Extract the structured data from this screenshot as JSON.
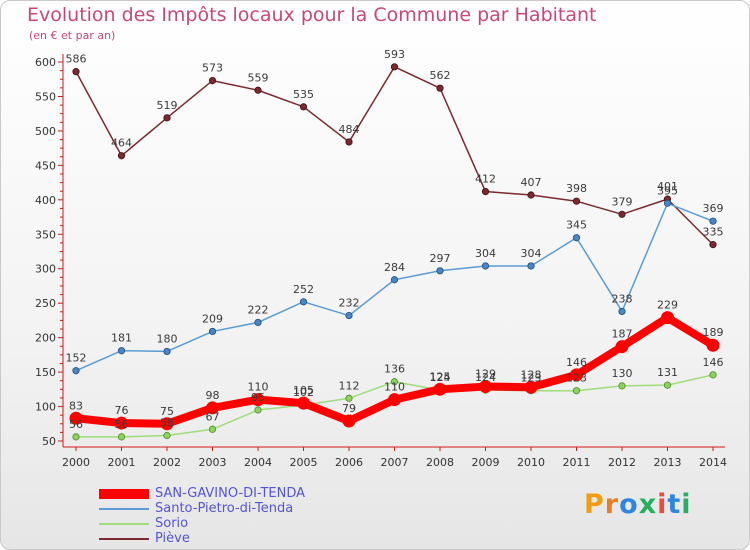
{
  "title": "Evolution des Impôts locaux pour la Commune par Habitant",
  "subtitle": "(en € et par an)",
  "brand": {
    "letters": [
      "P",
      "r",
      "o",
      "x",
      "i",
      "t",
      "i"
    ],
    "colors": [
      "#f39c12",
      "#e67e22",
      "#2e86de",
      "#27ae60",
      "#e74c3c",
      "#2e86de",
      "#27ae60"
    ]
  },
  "chart_data": {
    "type": "line",
    "title": "Evolution des Impôts locaux pour la Commune par Habitant",
    "subtitle": "(en € et par an)",
    "x": [
      "2000",
      "2001",
      "2002",
      "2003",
      "2004",
      "2005",
      "2006",
      "2007",
      "2008",
      "2009",
      "2010",
      "2011",
      "2012",
      "2013",
      "2014"
    ],
    "ylim": [
      50,
      600
    ],
    "yticks": [
      50,
      100,
      150,
      200,
      250,
      300,
      350,
      400,
      450,
      500,
      550,
      600
    ],
    "grid": false,
    "legend_position": "bottom-left",
    "series": [
      {
        "name": "SAN-GAVINO-DI-TENDA",
        "color": "#ff0000",
        "values": [
          83,
          76,
          75,
          98,
          110,
          105,
          79,
          110,
          125,
          129,
          128,
          146,
          187,
          229,
          189
        ],
        "labels": [
          "83",
          "76",
          "75",
          "98",
          "110",
          "105",
          "79",
          "110",
          "125",
          "129",
          "128",
          "146",
          "187",
          "229",
          "189"
        ]
      },
      {
        "name": "Santo-Pietro-di-Tenda",
        "color": "#4d8ec8",
        "values": [
          152,
          181,
          180,
          209,
          222,
          252,
          232,
          284,
          297,
          304,
          304,
          345,
          238,
          395,
          369
        ],
        "labels": [
          "152",
          "181",
          "180",
          "209",
          "222",
          "252",
          "232",
          "284",
          "297",
          "304",
          "304",
          "345",
          "238",
          "395",
          "369"
        ]
      },
      {
        "name": "Sorio",
        "color": "#90d66a",
        "values": [
          56,
          56,
          58,
          67,
          95,
          102,
          112,
          136,
          124,
          124,
          123,
          123,
          130,
          131,
          146
        ],
        "labels": [
          "56",
          "56",
          "58",
          "67",
          "95",
          "102",
          "112",
          "136",
          "124",
          "124",
          "123",
          "123",
          "130",
          "131",
          "146"
        ]
      },
      {
        "name": "Piève",
        "color": "#7a2a2e",
        "values": [
          586,
          464,
          519,
          573,
          559,
          535,
          484,
          593,
          562,
          412,
          407,
          398,
          379,
          401,
          335
        ],
        "labels": [
          "586",
          "464",
          "519",
          "573",
          "559",
          "535",
          "484",
          "593",
          "562",
          "412",
          "407",
          "398",
          "379",
          "401",
          "335"
        ]
      }
    ]
  }
}
